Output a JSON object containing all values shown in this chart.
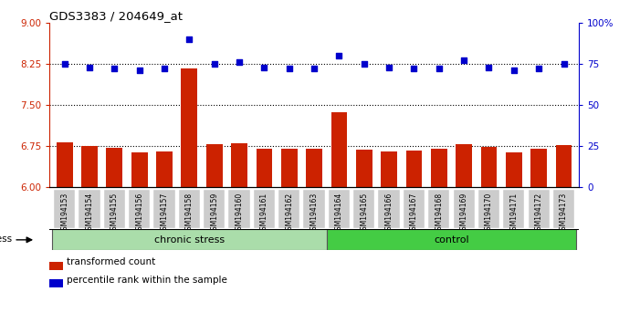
{
  "title": "GDS3383 / 204649_at",
  "samples": [
    "GSM194153",
    "GSM194154",
    "GSM194155",
    "GSM194156",
    "GSM194157",
    "GSM194158",
    "GSM194159",
    "GSM194160",
    "GSM194161",
    "GSM194162",
    "GSM194163",
    "GSM194164",
    "GSM194165",
    "GSM194166",
    "GSM194167",
    "GSM194168",
    "GSM194169",
    "GSM194170",
    "GSM194171",
    "GSM194172",
    "GSM194173"
  ],
  "bar_values": [
    6.82,
    6.75,
    6.72,
    6.63,
    6.66,
    8.17,
    6.78,
    6.8,
    6.7,
    6.7,
    6.7,
    7.37,
    6.68,
    6.65,
    6.67,
    6.7,
    6.79,
    6.73,
    6.63,
    6.7,
    6.77
  ],
  "dot_values": [
    75,
    73,
    72,
    71,
    72,
    90,
    75,
    76,
    73,
    72,
    72,
    80,
    75,
    73,
    72,
    72,
    77,
    73,
    71,
    72,
    75
  ],
  "bar_color": "#cc2200",
  "dot_color": "#0000cc",
  "ylim_left": [
    6,
    9
  ],
  "ylim_right": [
    0,
    100
  ],
  "yticks_left": [
    6,
    6.75,
    7.5,
    8.25,
    9
  ],
  "yticks_right": [
    0,
    25,
    50,
    75,
    100
  ],
  "ytick_labels_right": [
    "0",
    "25",
    "50",
    "75",
    "100%"
  ],
  "hlines": [
    6.75,
    7.5,
    8.25
  ],
  "chronic_stress_count": 11,
  "group_labels": [
    "chronic stress",
    "control"
  ],
  "group_color_light": "#aaddaa",
  "group_color_bright": "#44cc44",
  "legend_items": [
    "transformed count",
    "percentile rank within the sample"
  ],
  "legend_colors": [
    "#cc2200",
    "#0000cc"
  ],
  "stress_label": "stress",
  "bar_bottom": 6,
  "bar_width": 0.65,
  "xtick_bg": "#cccccc",
  "plot_bg": "#ffffff"
}
